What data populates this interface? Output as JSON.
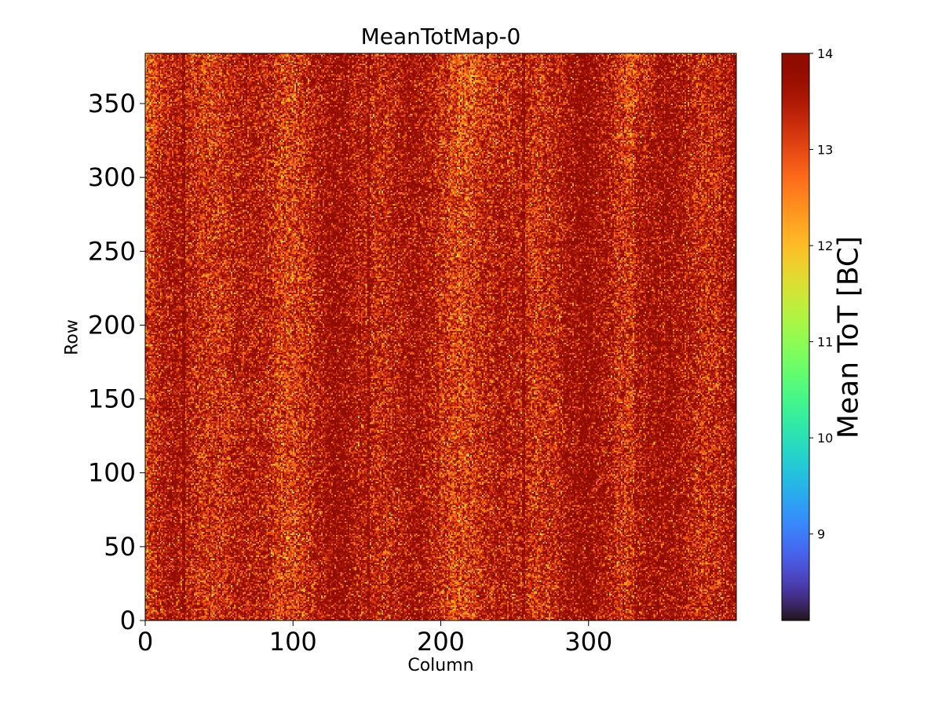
{
  "chart_data": {
    "type": "heatmap",
    "title": "MeanTotMap-0",
    "xlabel": "Column",
    "ylabel": "Row",
    "xlim": [
      0,
      400
    ],
    "ylim": [
      0,
      384
    ],
    "n_columns": 400,
    "n_rows": 384,
    "x_ticks": [
      0,
      100,
      200,
      300
    ],
    "y_ticks": [
      0,
      50,
      100,
      150,
      200,
      250,
      300,
      350
    ],
    "colorbar": {
      "label": "Mean ToT [BC]",
      "colormap": "turbo",
      "range": [
        8.1,
        14
      ],
      "ticks": [
        9,
        10,
        11,
        12,
        13,
        14
      ]
    },
    "value_summary": {
      "typical_range": [
        11.5,
        14
      ],
      "dominant_value": 13.5,
      "notes": "Values mostly 12–14 BC; left edge and upper-left region slightly lower (more yellow/green); darker vertical stripes at columns ~25, ~150, ~255; lighter vertical band near columns ~220–240 at top."
    }
  }
}
